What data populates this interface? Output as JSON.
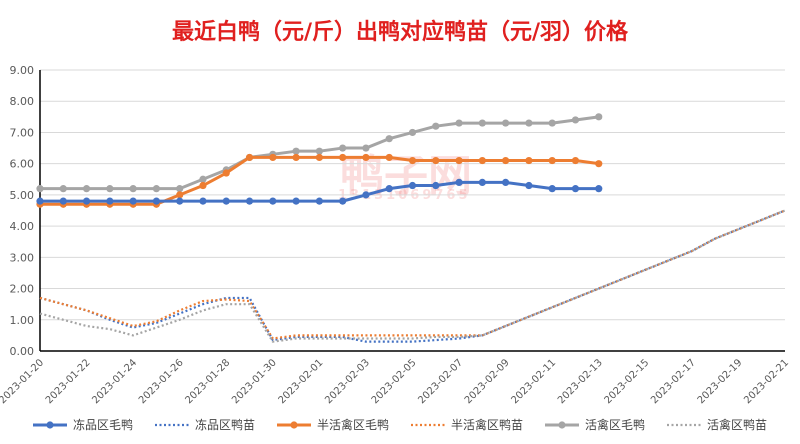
{
  "chart_data": {
    "type": "line",
    "title": "最近白鸭（元/斤）出鸭对应鸭苗（元/羽）价格",
    "xlabel": "",
    "ylabel": "",
    "ylim": [
      0,
      9
    ],
    "y_ticks": [
      "0.00",
      "1.00",
      "2.00",
      "3.00",
      "4.00",
      "5.00",
      "6.00",
      "7.00",
      "8.00",
      "9.00"
    ],
    "grid": true,
    "legend_position": "bottom",
    "x": [
      "2023-01-20",
      "2023-01-21",
      "2023-01-22",
      "2023-01-23",
      "2023-01-24",
      "2023-01-25",
      "2023-01-26",
      "2023-01-27",
      "2023-01-28",
      "2023-01-29",
      "2023-01-30",
      "2023-01-31",
      "2023-02-01",
      "2023-02-02",
      "2023-02-03",
      "2023-02-04",
      "2023-02-05",
      "2023-02-06",
      "2023-02-07",
      "2023-02-08",
      "2023-02-09",
      "2023-02-10",
      "2023-02-11",
      "2023-02-12",
      "2023-02-13",
      "2023-02-14",
      "2023-02-15",
      "2023-02-16",
      "2023-02-17",
      "2023-02-18",
      "2023-02-19",
      "2023-02-20",
      "2023-02-21"
    ],
    "x_tick_labels": [
      "2023-01-20",
      "2023-01-22",
      "2023-01-24",
      "2023-01-26",
      "2023-01-28",
      "2023-01-30",
      "2023-02-01",
      "2023-02-03",
      "2023-02-05",
      "2023-02-07",
      "2023-02-09",
      "2023-02-11",
      "2023-02-13",
      "2023-02-15",
      "2023-02-17",
      "2023-02-19",
      "2023-02-21"
    ],
    "series": [
      {
        "name": "冻品区毛鸭",
        "color": "#4472c4",
        "style": "solid",
        "markers": true,
        "values": [
          4.8,
          4.8,
          4.8,
          4.8,
          4.8,
          4.8,
          4.8,
          4.8,
          4.8,
          4.8,
          4.8,
          4.8,
          4.8,
          4.8,
          5.0,
          5.2,
          5.3,
          5.3,
          5.4,
          5.4,
          5.4,
          5.3,
          5.2,
          5.2,
          5.2,
          null,
          null,
          null,
          null,
          null,
          null,
          null,
          null
        ]
      },
      {
        "name": "冻品区鸭苗",
        "color": "#4472c4",
        "style": "dotted",
        "markers": false,
        "values": [
          1.7,
          1.5,
          1.3,
          1.0,
          0.75,
          0.9,
          1.2,
          1.5,
          1.7,
          1.7,
          0.35,
          0.45,
          0.45,
          0.45,
          0.3,
          0.3,
          0.3,
          0.35,
          0.4,
          0.5,
          0.8,
          1.1,
          1.4,
          1.7,
          2.0,
          2.3,
          2.6,
          2.9,
          3.2,
          3.6,
          3.9,
          4.2,
          4.5
        ]
      },
      {
        "name": "半活禽区毛鸭",
        "color": "#ed7d31",
        "style": "solid",
        "markers": true,
        "values": [
          4.7,
          4.7,
          4.7,
          4.7,
          4.7,
          4.7,
          5.0,
          5.3,
          5.7,
          6.2,
          6.2,
          6.2,
          6.2,
          6.2,
          6.2,
          6.2,
          6.1,
          6.1,
          6.1,
          6.1,
          6.1,
          6.1,
          6.1,
          6.1,
          6.0,
          null,
          null,
          null,
          null,
          null,
          null,
          null,
          null
        ]
      },
      {
        "name": "半活禽区鸭苗",
        "color": "#ed7d31",
        "style": "dotted",
        "markers": false,
        "values": [
          1.7,
          1.5,
          1.3,
          1.05,
          0.8,
          0.95,
          1.3,
          1.6,
          1.65,
          1.6,
          0.4,
          0.5,
          0.5,
          0.5,
          0.5,
          0.5,
          0.5,
          0.5,
          0.5,
          0.5,
          0.8,
          1.1,
          1.4,
          1.7,
          2.0,
          2.3,
          2.6,
          2.9,
          3.2,
          3.6,
          3.9,
          4.2,
          4.5
        ]
      },
      {
        "name": "活禽区毛鸭",
        "color": "#a5a5a5",
        "style": "solid",
        "markers": true,
        "values": [
          5.2,
          5.2,
          5.2,
          5.2,
          5.2,
          5.2,
          5.2,
          5.5,
          5.8,
          6.2,
          6.3,
          6.4,
          6.4,
          6.5,
          6.5,
          6.8,
          7.0,
          7.2,
          7.3,
          7.3,
          7.3,
          7.3,
          7.3,
          7.4,
          7.5,
          null,
          null,
          null,
          null,
          null,
          null,
          null,
          null
        ]
      },
      {
        "name": "活禽区鸭苗",
        "color": "#a5a5a5",
        "style": "dotted",
        "markers": false,
        "values": [
          1.2,
          1.0,
          0.8,
          0.7,
          0.5,
          0.75,
          1.0,
          1.3,
          1.5,
          1.5,
          0.3,
          0.4,
          0.4,
          0.4,
          0.4,
          0.4,
          0.4,
          0.45,
          0.45,
          0.5,
          0.8,
          1.1,
          1.4,
          1.7,
          2.0,
          2.3,
          2.6,
          2.9,
          3.2,
          3.6,
          3.9,
          4.2,
          4.5
        ]
      }
    ]
  },
  "watermark": {
    "logo_text": "鸭子网",
    "url": "WWW.INTEDQ.COM",
    "phone": "13131069765"
  }
}
